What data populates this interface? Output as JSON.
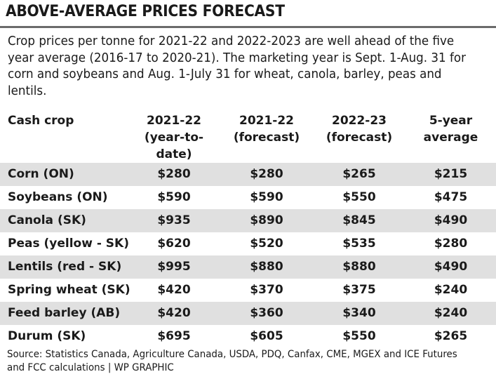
{
  "title": "ABOVE-AVERAGE PRICES FORECAST",
  "subtitle": "Crop prices per tonne for 2021-22 and 2022-2023 are well ahead of the five year average (2016-17 to 2020-21). The marketing year is Sept. 1-Aug. 31 for corn and soybeans and Aug. 1-July 31 for wheat, canola, barley, peas and lentils.",
  "source": "Source: Statistics Canada, Agriculture Canada, USDA, PDQ, Canfax, CME, MGEX and ICE Futures and FCC calculations | WP GRAPHIC",
  "colors": {
    "row_shade": "#e0e0e0",
    "rule": "#6b6b6b",
    "text": "#1a1a1a"
  },
  "chart_data": {
    "type": "table",
    "title": "ABOVE-AVERAGE PRICES FORECAST",
    "columns": [
      {
        "line1": "Cash crop",
        "line2": ""
      },
      {
        "line1": "2021-22",
        "line2": "(year-to-date)"
      },
      {
        "line1": "2021-22",
        "line2": "(forecast)"
      },
      {
        "line1": "2022-23",
        "line2": "(forecast)"
      },
      {
        "line1": "5-year",
        "line2": "average"
      }
    ],
    "rows": [
      {
        "crop": "Corn (ON)",
        "values": [
          "$280",
          "$280",
          "$265",
          "$215"
        ]
      },
      {
        "crop": "Soybeans (ON)",
        "values": [
          "$590",
          "$590",
          "$550",
          "$475"
        ]
      },
      {
        "crop": "Canola (SK)",
        "values": [
          "$935",
          "$890",
          "$845",
          "$490"
        ]
      },
      {
        "crop": "Peas (yellow - SK)",
        "values": [
          "$620",
          "$520",
          "$535",
          "$280"
        ]
      },
      {
        "crop": "Lentils (red - SK)",
        "values": [
          "$995",
          "$880",
          "$880",
          "$490"
        ]
      },
      {
        "crop": "Spring wheat (SK)",
        "values": [
          "$420",
          "$370",
          "$375",
          "$240"
        ]
      },
      {
        "crop": "Feed barley (AB)",
        "values": [
          "$420",
          "$360",
          "$340",
          "$240"
        ]
      },
      {
        "crop": "Durum (SK)",
        "values": [
          "$695",
          "$605",
          "$550",
          "$265"
        ]
      }
    ]
  }
}
